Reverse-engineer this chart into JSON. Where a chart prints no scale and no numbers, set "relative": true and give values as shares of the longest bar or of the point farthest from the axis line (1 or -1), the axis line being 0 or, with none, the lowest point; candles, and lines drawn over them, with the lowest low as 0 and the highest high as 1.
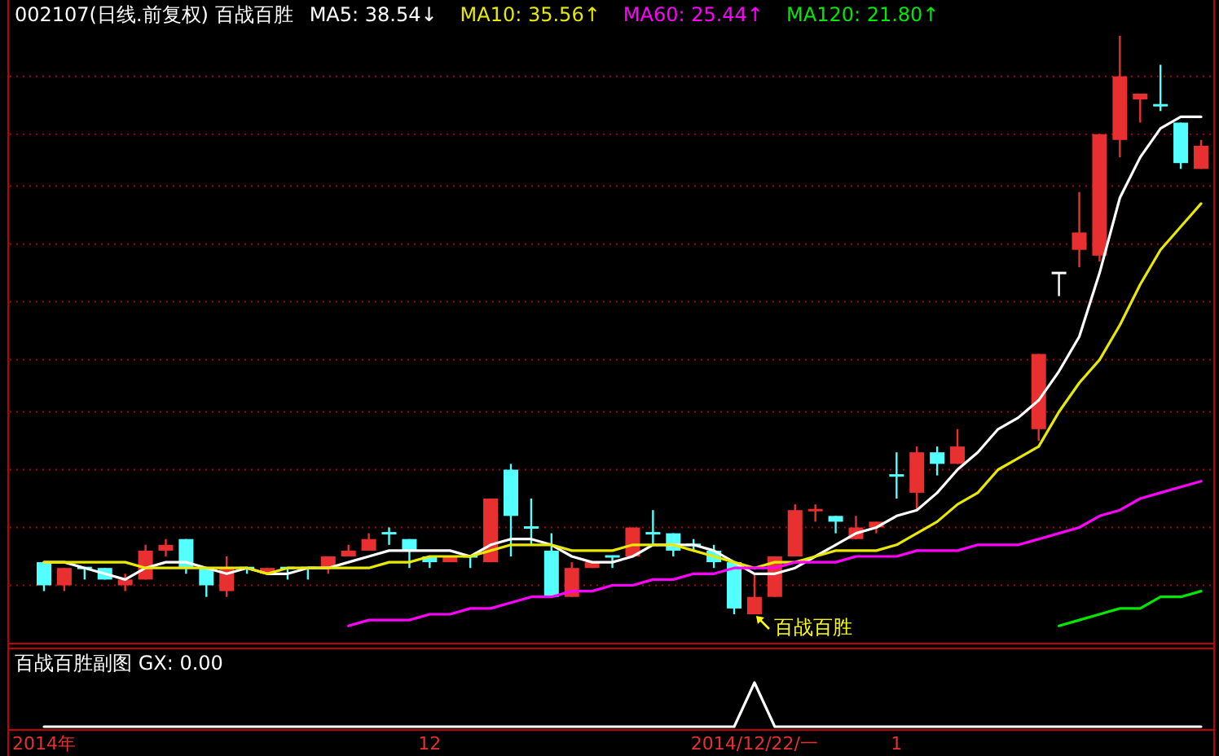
{
  "chart_data": [
    {
      "type": "candlestick",
      "title": "002107(日线.前复权) 百战百胜",
      "relative": true,
      "tick_labels": "x",
      "categories": [
        "2014年",
        null,
        null,
        null,
        null,
        null,
        null,
        null,
        null,
        null,
        null,
        null,
        null,
        null,
        null,
        null,
        null,
        null,
        null,
        "12",
        null,
        null,
        null,
        null,
        null,
        null,
        null,
        null,
        null,
        null,
        null,
        null,
        null,
        null,
        null,
        "2014/12/22/一",
        null,
        null,
        null,
        null,
        null,
        null,
        "1",
        null,
        null,
        null,
        null,
        null,
        null,
        null,
        null,
        null,
        null,
        null,
        null,
        null,
        null,
        null
      ],
      "ohlc": [
        [
          0.09,
          0.09,
          0.04,
          0.05
        ],
        [
          0.05,
          0.08,
          0.04,
          0.08
        ],
        [
          0.08,
          0.08,
          0.06,
          0.08
        ],
        [
          0.08,
          0.08,
          0.06,
          0.06
        ],
        [
          0.05,
          0.07,
          0.04,
          0.06
        ],
        [
          0.06,
          0.12,
          0.06,
          0.11
        ],
        [
          0.11,
          0.13,
          0.1,
          0.12
        ],
        [
          0.13,
          0.13,
          0.07,
          0.08
        ],
        [
          0.08,
          0.08,
          0.03,
          0.05
        ],
        [
          0.04,
          0.1,
          0.03,
          0.08
        ],
        [
          0.08,
          0.08,
          0.07,
          0.08
        ],
        [
          0.07,
          0.08,
          0.07,
          0.08
        ],
        [
          0.08,
          0.08,
          0.06,
          0.08
        ],
        [
          0.08,
          0.08,
          0.06,
          0.08
        ],
        [
          0.08,
          0.1,
          0.07,
          0.1
        ],
        [
          0.1,
          0.12,
          0.1,
          0.11
        ],
        [
          0.11,
          0.14,
          0.11,
          0.13
        ],
        [
          0.14,
          0.15,
          0.12,
          0.14
        ],
        [
          0.13,
          0.13,
          0.08,
          0.11
        ],
        [
          0.1,
          0.1,
          0.08,
          0.09
        ],
        [
          0.09,
          0.1,
          0.09,
          0.1
        ],
        [
          0.1,
          0.1,
          0.08,
          0.1
        ],
        [
          0.09,
          0.2,
          0.09,
          0.2
        ],
        [
          0.25,
          0.26,
          0.1,
          0.17
        ],
        [
          0.15,
          0.2,
          0.12,
          0.15
        ],
        [
          0.11,
          0.14,
          0.03,
          0.03
        ],
        [
          0.03,
          0.09,
          0.03,
          0.08
        ],
        [
          0.08,
          0.09,
          0.08,
          0.09
        ],
        [
          0.1,
          0.1,
          0.08,
          0.1
        ],
        [
          0.1,
          0.15,
          0.1,
          0.15
        ],
        [
          0.14,
          0.18,
          0.12,
          0.14
        ],
        [
          0.14,
          0.14,
          0.1,
          0.11
        ],
        [
          0.12,
          0.13,
          0.11,
          0.12
        ],
        [
          0.11,
          0.12,
          0.08,
          0.09
        ],
        [
          0.09,
          0.09,
          0,
          0.01
        ],
        [
          0,
          0.07,
          0,
          0.03
        ],
        [
          0.03,
          0.1,
          0.03,
          0.1
        ],
        [
          0.1,
          0.19,
          0.1,
          0.18
        ],
        [
          0.18,
          0.19,
          0.16,
          0.18
        ],
        [
          0.17,
          0.17,
          0.14,
          0.16
        ],
        [
          0.13,
          0.17,
          0.13,
          0.15
        ],
        [
          0.15,
          0.16,
          0.14,
          0.16
        ],
        [
          0.24,
          0.28,
          0.2,
          0.24
        ],
        [
          0.21,
          0.29,
          0.18,
          0.28
        ],
        [
          0.28,
          0.29,
          0.24,
          0.26
        ],
        [
          0.26,
          0.32,
          0.26,
          0.29
        ],
        null,
        null,
        null,
        [
          0.32,
          0.45,
          0.3,
          0.45
        ],
        [
          0.59,
          0.59,
          0.55,
          0.59
        ],
        [
          0.63,
          0.73,
          0.6,
          0.66
        ],
        [
          0.62,
          0.83,
          0.61,
          0.83
        ],
        [
          0.82,
          1,
          0.79,
          0.93
        ],
        [
          0.89,
          0.9,
          0.85,
          0.9
        ],
        [
          0.88,
          0.95,
          0.87,
          0.88
        ],
        [
          0.85,
          0.85,
          0.77,
          0.78
        ],
        [
          0.77,
          0.82,
          0.77,
          0.81
        ]
      ],
      "colors": [
        "#54ffff",
        "#e83030",
        "#54ffff",
        "#54ffff",
        "#e83030",
        "#e83030",
        "#e83030",
        "#54ffff",
        "#54ffff",
        "#e83030",
        "#54ffff",
        "#e83030",
        "#54ffff",
        "#54ffff",
        "#e83030",
        "#e83030",
        "#e83030",
        "#54ffff",
        "#54ffff",
        "#54ffff",
        "#e83030",
        "#54ffff",
        "#e83030",
        "#54ffff",
        "#54ffff",
        "#54ffff",
        "#e83030",
        "#e83030",
        "#54ffff",
        "#e83030",
        "#54ffff",
        "#54ffff",
        "#54ffff",
        "#54ffff",
        "#54ffff",
        "#e83030",
        "#e83030",
        "#e83030",
        "#e83030",
        "#54ffff",
        "#e83030",
        "#e83030",
        "#54ffff",
        "#e83030",
        "#54ffff",
        "#e83030",
        null,
        null,
        null,
        "#e83030",
        "#ffffff",
        "#e83030",
        "#e83030",
        "#e83030",
        "#e83030",
        "#54ffff",
        "#54ffff",
        "#e83030"
      ],
      "series": [
        {
          "type": "line",
          "name": "MA5: 38.54↓",
          "color": "#ffffff",
          "values": [
            0.09,
            0.09,
            0.08,
            0.07,
            0.06,
            0.08,
            0.09,
            0.09,
            0.08,
            0.07,
            0.08,
            0.07,
            0.07,
            0.08,
            0.08,
            0.09,
            0.1,
            0.11,
            0.11,
            0.11,
            0.11,
            0.1,
            0.12,
            0.13,
            0.13,
            0.12,
            0.1,
            0.09,
            0.09,
            0.1,
            0.12,
            0.12,
            0.12,
            0.11,
            0.09,
            0.07,
            0.07,
            0.08,
            0.1,
            0.12,
            0.14,
            0.15,
            0.17,
            0.18,
            0.21,
            0.25,
            0.28,
            0.32,
            0.34,
            0.37,
            0.42,
            0.48,
            0.59,
            0.72,
            0.79,
            0.84,
            0.86,
            0.86
          ]
        },
        {
          "type": "line",
          "name": "MA10: 35.56↑",
          "color": "#e8e800",
          "values": [
            0.09,
            0.09,
            0.09,
            0.09,
            0.09,
            0.08,
            0.08,
            0.08,
            0.08,
            0.08,
            0.08,
            0.07,
            0.08,
            0.08,
            0.08,
            0.08,
            0.08,
            0.09,
            0.09,
            0.1,
            0.1,
            0.1,
            0.11,
            0.12,
            0.12,
            0.12,
            0.11,
            0.11,
            0.11,
            0.12,
            0.12,
            0.12,
            0.11,
            0.1,
            0.09,
            0.08,
            0.09,
            0.09,
            0.1,
            0.11,
            0.11,
            0.11,
            0.12,
            0.14,
            0.16,
            0.19,
            0.21,
            0.25,
            0.27,
            0.29,
            0.35,
            0.4,
            0.44,
            0.5,
            0.57,
            0.63,
            0.67,
            0.71
          ]
        },
        {
          "type": "line",
          "name": "MA60: 25.44↑",
          "color": "#ff00ff",
          "values": [
            null,
            null,
            null,
            null,
            null,
            null,
            null,
            null,
            null,
            null,
            null,
            null,
            null,
            null,
            null,
            -0.02,
            -0.01,
            -0.01,
            -0.01,
            0,
            0,
            0.01,
            0.01,
            0.02,
            0.03,
            0.03,
            0.04,
            0.04,
            0.05,
            0.05,
            0.06,
            0.06,
            0.07,
            0.07,
            0.08,
            0.08,
            0.08,
            0.09,
            0.09,
            0.09,
            0.1,
            0.1,
            0.1,
            0.11,
            0.11,
            0.11,
            0.12,
            0.12,
            0.12,
            0.13,
            0.14,
            0.15,
            0.17,
            0.18,
            0.2,
            0.21,
            0.22,
            0.23
          ]
        },
        {
          "type": "line",
          "name": "MA120: 21.80↑",
          "color": "#00e800",
          "values": [
            null,
            null,
            null,
            null,
            null,
            null,
            null,
            null,
            null,
            null,
            null,
            null,
            null,
            null,
            null,
            null,
            null,
            null,
            null,
            null,
            null,
            null,
            null,
            null,
            null,
            null,
            null,
            null,
            null,
            null,
            null,
            null,
            null,
            null,
            null,
            null,
            null,
            null,
            null,
            null,
            null,
            null,
            null,
            null,
            null,
            null,
            null,
            null,
            null,
            null,
            -0.02,
            -0.01,
            0,
            0.01,
            0.01,
            0.03,
            0.03,
            0.04
          ]
        }
      ],
      "ref_lines": [
        {
          "axis": "y",
          "value": 0.93,
          "color": "#b00000",
          "line_style": "dotted"
        },
        {
          "axis": "y",
          "value": 0.83,
          "color": "#b00000",
          "line_style": "dotted"
        },
        {
          "axis": "y",
          "value": 0.74,
          "color": "#b00000",
          "line_style": "dotted"
        },
        {
          "axis": "y",
          "value": 0.64,
          "color": "#b00000",
          "line_style": "dotted"
        },
        {
          "axis": "y",
          "value": 0.54,
          "color": "#b00000",
          "line_style": "dotted"
        },
        {
          "axis": "y",
          "value": 0.44,
          "color": "#b00000",
          "line_style": "dotted"
        },
        {
          "axis": "y",
          "value": 0.35,
          "color": "#b00000",
          "line_style": "dotted"
        },
        {
          "axis": "y",
          "value": 0.25,
          "color": "#b00000",
          "line_style": "dotted"
        },
        {
          "axis": "y",
          "value": 0.15,
          "color": "#b00000",
          "line_style": "dotted"
        },
        {
          "axis": "y",
          "value": 0.05,
          "color": "#b00000",
          "line_style": "dotted"
        }
      ],
      "annotations": [
        {
          "text": "百战百胜",
          "x": "2014/12/22/一",
          "y": 0
        }
      ]
    },
    {
      "type": "line",
      "title": "百战百胜副图 GX: 0.00",
      "relative": true,
      "tick_labels": false,
      "categories": [
        null,
        null,
        null,
        null,
        null,
        null,
        null,
        null,
        null,
        null,
        null,
        null,
        null,
        null,
        null,
        null,
        null,
        null,
        null,
        null,
        null,
        null,
        null,
        null,
        null,
        null,
        null,
        null,
        null,
        null,
        null,
        null,
        null,
        null,
        null,
        null,
        null,
        null,
        null,
        null,
        null,
        null,
        null,
        null,
        null,
        null,
        null,
        null,
        null,
        null,
        null,
        null,
        null,
        null,
        null,
        null,
        null,
        null
      ],
      "series": [
        {
          "color": "#ffffff",
          "values": [
            0,
            0,
            0,
            0,
            0,
            0,
            0,
            0,
            0,
            0,
            0,
            0,
            0,
            0,
            0,
            0,
            0,
            0,
            0,
            0,
            0,
            0,
            0,
            0,
            0,
            0,
            0,
            0,
            0,
            0,
            0,
            0,
            0,
            0,
            0,
            1,
            0,
            0,
            0,
            0,
            0,
            0,
            0,
            0,
            0,
            0,
            0,
            0,
            0,
            0,
            0,
            0,
            0,
            0,
            0,
            0,
            0,
            0
          ]
        }
      ]
    }
  ]
}
